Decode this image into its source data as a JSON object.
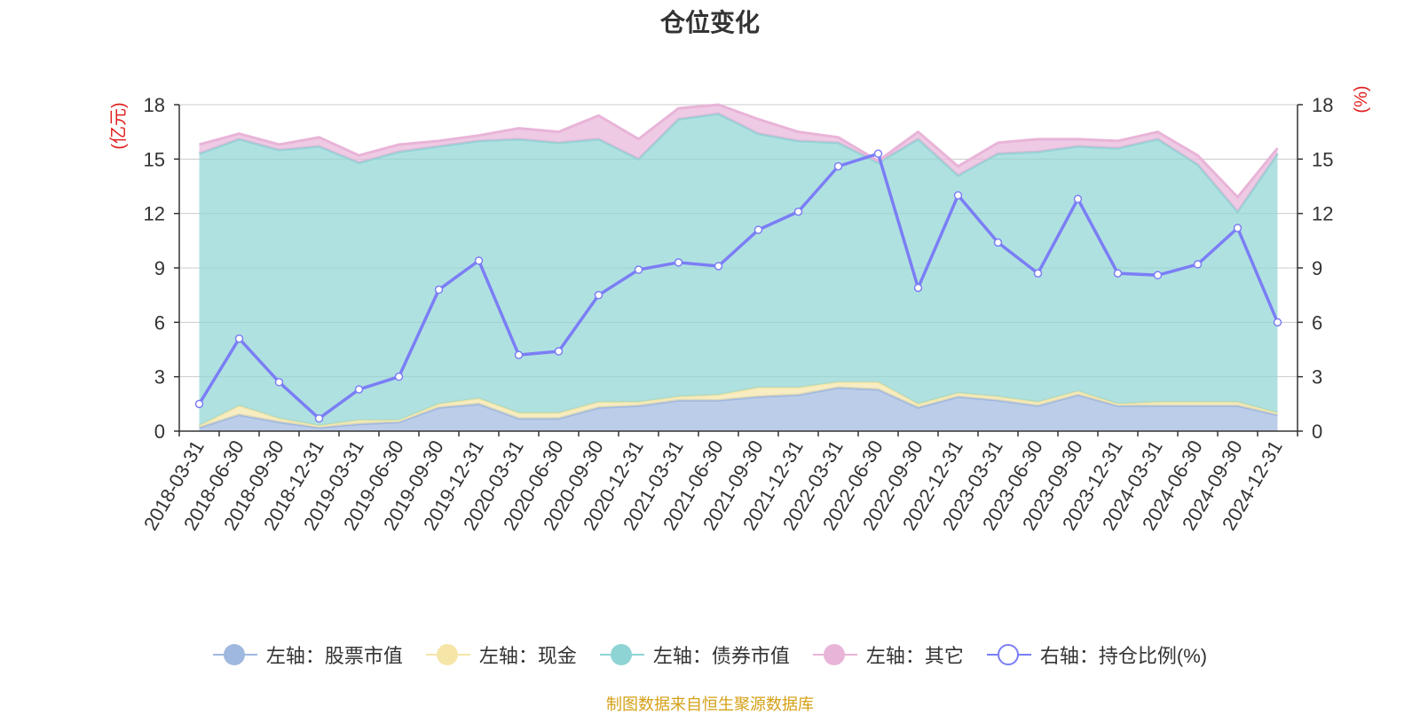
{
  "title": "仓位变化",
  "left_axis_unit": "(亿元)",
  "right_axis_unit": "(%)",
  "source_note": "制图数据来自恒生聚源数据库",
  "legend": [
    {
      "label": "左轴：股票市值",
      "color": "#9fb8e0"
    },
    {
      "label": "左轴：现金",
      "color": "#f5e6a8"
    },
    {
      "label": "左轴：债券市值",
      "color": "#8fd4d4"
    },
    {
      "label": "左轴：其它",
      "color": "#e8b4d8"
    },
    {
      "label": "右轴：持仓比例(%)",
      "color": "#7b7ef5"
    }
  ],
  "chart_data": {
    "type": "area",
    "categories": [
      "2018-03-31",
      "2018-06-30",
      "2018-09-30",
      "2018-12-31",
      "2019-03-31",
      "2019-06-30",
      "2019-09-30",
      "2019-12-31",
      "2020-03-31",
      "2020-06-30",
      "2020-09-30",
      "2020-12-31",
      "2021-03-31",
      "2021-06-30",
      "2021-09-30",
      "2021-12-31",
      "2022-03-31",
      "2022-06-30",
      "2022-09-30",
      "2022-12-31",
      "2023-03-31",
      "2023-06-30",
      "2023-09-30",
      "2023-12-31",
      "2024-03-31",
      "2024-06-30",
      "2024-09-30",
      "2024-12-31"
    ],
    "left_ylim": [
      0,
      18
    ],
    "right_ylim": [
      0,
      18
    ],
    "y_ticks": [
      0,
      3,
      6,
      9,
      12,
      15,
      18
    ],
    "grid": true,
    "legend_position": "bottom",
    "series": [
      {
        "name": "左轴：股票市值",
        "axis": "left",
        "stacked": true,
        "color": "#9fb8e0",
        "values": [
          0.2,
          0.9,
          0.5,
          0.2,
          0.4,
          0.5,
          1.3,
          1.5,
          0.7,
          0.7,
          1.3,
          1.4,
          1.7,
          1.7,
          1.9,
          2.0,
          2.4,
          2.3,
          1.3,
          1.9,
          1.7,
          1.4,
          2.0,
          1.4,
          1.4,
          1.4,
          1.4,
          0.9
        ]
      },
      {
        "name": "左轴：现金",
        "axis": "left",
        "stacked": true,
        "color": "#f5e6a8",
        "values": [
          0.1,
          0.5,
          0.2,
          0.1,
          0.2,
          0.1,
          0.2,
          0.3,
          0.3,
          0.3,
          0.3,
          0.2,
          0.2,
          0.3,
          0.5,
          0.4,
          0.3,
          0.4,
          0.2,
          0.2,
          0.2,
          0.2,
          0.2,
          0.1,
          0.2,
          0.2,
          0.2,
          0.1
        ]
      },
      {
        "name": "左轴：债券市值",
        "axis": "left",
        "stacked": true,
        "color": "#8fd4d4",
        "values": [
          15.0,
          14.7,
          14.8,
          15.4,
          14.2,
          14.8,
          14.2,
          14.2,
          15.1,
          14.9,
          14.5,
          13.4,
          15.3,
          15.5,
          14.0,
          13.6,
          13.2,
          12.1,
          14.6,
          12.0,
          13.4,
          13.8,
          13.5,
          14.1,
          14.5,
          13.1,
          10.5,
          14.3
        ]
      },
      {
        "name": "左轴：其它",
        "axis": "left",
        "stacked": true,
        "color": "#e8b4d8",
        "values": [
          0.5,
          0.3,
          0.3,
          0.5,
          0.4,
          0.4,
          0.3,
          0.3,
          0.6,
          0.6,
          1.3,
          1.1,
          0.6,
          0.5,
          0.8,
          0.5,
          0.3,
          0.1,
          0.4,
          0.5,
          0.6,
          0.7,
          0.4,
          0.4,
          0.4,
          0.5,
          0.8,
          0.3
        ]
      },
      {
        "name": "右轴：持仓比例(%)",
        "axis": "right",
        "stacked": false,
        "color": "#7b7ef5",
        "type": "line",
        "values": [
          1.5,
          5.1,
          2.7,
          0.7,
          2.3,
          3.0,
          7.8,
          9.4,
          4.2,
          4.4,
          7.5,
          8.9,
          9.3,
          9.1,
          11.1,
          12.1,
          14.6,
          15.3,
          7.9,
          13.0,
          10.4,
          8.7,
          12.8,
          8.7,
          8.6,
          9.2,
          11.2,
          6.0
        ]
      }
    ]
  }
}
